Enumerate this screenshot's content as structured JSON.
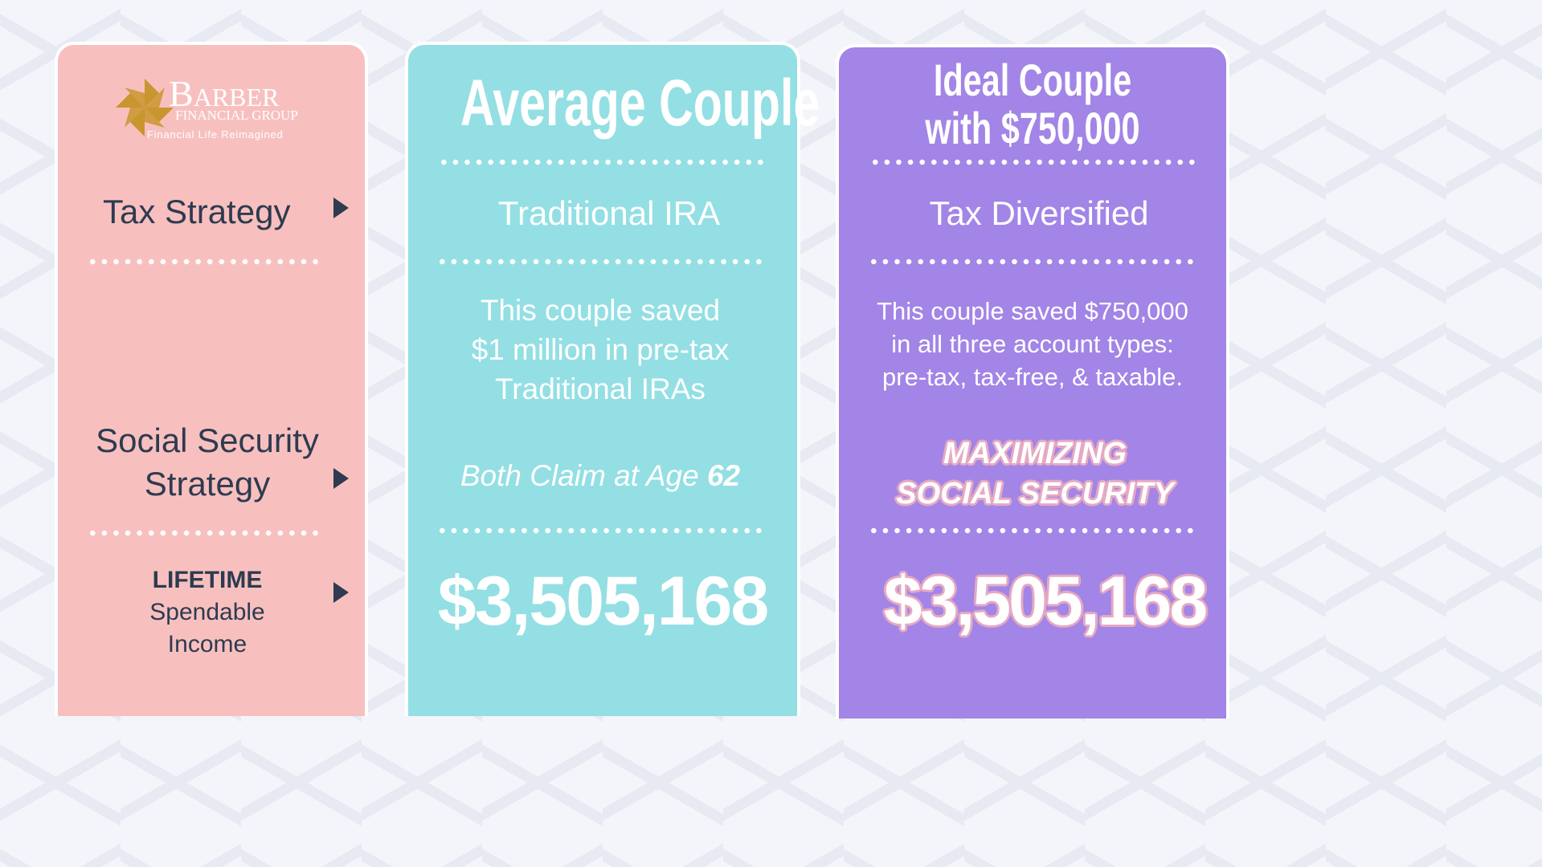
{
  "brand": {
    "name_big": "B",
    "name_rest": "ARBER",
    "sub": "FINANCIAL GROUP",
    "tagline": "Financial Life Reimagined"
  },
  "labels": {
    "tax_strategy": "Tax Strategy",
    "social_security_line1": "Social Security",
    "social_security_line2": "Strategy",
    "lifetime": "LIFETIME",
    "spendable": "Spendable",
    "income": "Income"
  },
  "average": {
    "title": "Average Couple",
    "strategy": "Traditional IRA",
    "desc_line1": "This couple saved",
    "desc_line2": "$1 million in pre-tax",
    "desc_line3": "Traditional IRAs",
    "claim_text": "Both Claim at Age ",
    "claim_age": "62",
    "amount": "$3,505,168"
  },
  "ideal": {
    "title_line1": "Ideal Couple",
    "title_line2": "with $750,000",
    "strategy": "Tax Diversified",
    "desc_line1": "This couple saved $750,000",
    "desc_line2": "in all three account types:",
    "desc_line3": "pre-tax, tax-free, & taxable.",
    "ss_line1": "MAXIMIZING",
    "ss_line2": "SOCIAL SECURITY",
    "amount": "$3,505,168"
  },
  "colors": {
    "left_card": "#f7c0bf",
    "mid_card": "#93dfe4",
    "right_card": "#a285e6",
    "navy_text": "#2e3b50",
    "gold_logo": "#c9952e"
  },
  "icons": [
    "pinwheel-logo-icon",
    "play-arrow-icon"
  ]
}
